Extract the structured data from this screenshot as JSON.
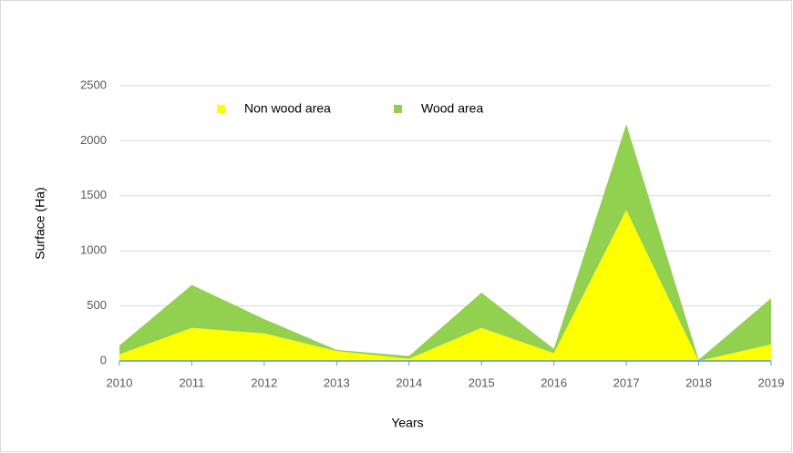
{
  "chart_data": {
    "type": "stacked_area",
    "x": [
      2010,
      2011,
      2012,
      2013,
      2014,
      2015,
      2016,
      2017,
      2018,
      2019
    ],
    "series": [
      {
        "name": "Non wood area",
        "color": "#ffff00",
        "values": [
          60,
          300,
          250,
          90,
          20,
          300,
          70,
          1370,
          0,
          150
        ]
      },
      {
        "name": "Wood area",
        "color": "#92d050",
        "values": [
          80,
          390,
          130,
          10,
          25,
          320,
          40,
          780,
          10,
          420
        ]
      }
    ],
    "xlim": [
      2010,
      2019
    ],
    "xticks": [
      2010,
      2011,
      2012,
      2013,
      2014,
      2015,
      2016,
      2017,
      2018,
      2019
    ],
    "ylim": [
      0,
      2500
    ],
    "yticks": [
      0,
      500,
      1000,
      1500,
      2000,
      2500
    ],
    "xlabel": "Years",
    "ylabel": "Surface (Ha)",
    "grid": true,
    "legend": "top"
  }
}
